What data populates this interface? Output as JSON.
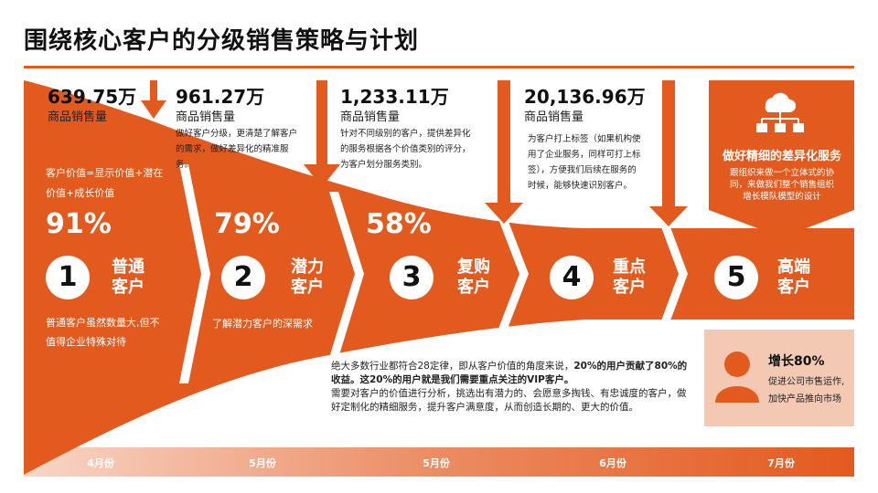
{
  "title": "围绕核心客户的分级销售策略与计划",
  "colors": {
    "accent": "#e35a1e",
    "accent_light": "#f3c9b4"
  },
  "stats": [
    {
      "value": "639.75万",
      "label": "商品销售量"
    },
    {
      "value": "961.27万",
      "label": "商品销售量"
    },
    {
      "value": "1,233.11万",
      "label": "商品销售量"
    },
    {
      "value": "20,136.96万",
      "label": "商品销售量"
    }
  ],
  "descriptions": {
    "col2": "做好客户分级，更清楚了解客户的需求，做好差异化的精准服务。",
    "col3": "针对不同级别的客户，提供差异化的服务根据各个价值类别的评分，为客户划分服务类别。",
    "col4": "为客户打上标签（如果机构使用了企业服务，同样可打上标签），方便我们后续在服务的时候，能够快速识别客户。"
  },
  "value_formula": "客户价值=显示价值+潜在价值+成长价值",
  "stages": [
    {
      "number": "1",
      "name": "普通客户",
      "percent": "91%"
    },
    {
      "number": "2",
      "name": "潜力客户",
      "percent": "79%"
    },
    {
      "number": "3",
      "name": "复购客户",
      "percent": "58%"
    },
    {
      "number": "4",
      "name": "重点客户",
      "percent": ""
    },
    {
      "number": "5",
      "name": "高端客户",
      "percent": ""
    }
  ],
  "stage_notes": {
    "stage1": "普通客户虽然数量大,但不值得企业特殊对待",
    "stage2": "了解潜力客户的深需求"
  },
  "differentiation": {
    "title": "做好精细的差异化服务",
    "description": "跟组织来做一个立体式的协同，来做我们整个销售组织增长模队模型的设计",
    "icon": "cloud-network-icon"
  },
  "summary": {
    "intro": "绝大多数行业都符合28定律，即从客户价值的角度来说，",
    "bold": "20%的用户贡献了80%的收益。这20%的用户就是我们需要重点关注的VIP客户。",
    "rest": "需要对客户的价值进行分析，挑选出有潜力的、会愿意多掏钱、有忠诚度的客户，做好定制化的精细服务，提升客户满意度，从而创造长期的、更大的价值。"
  },
  "growth": {
    "title": "增长80%",
    "description": "促进公司市售运作,加快产品推向市场",
    "icon": "person-icon"
  },
  "months": [
    "4月份",
    "5月份",
    "5月份",
    "6月份",
    "7月份"
  ]
}
